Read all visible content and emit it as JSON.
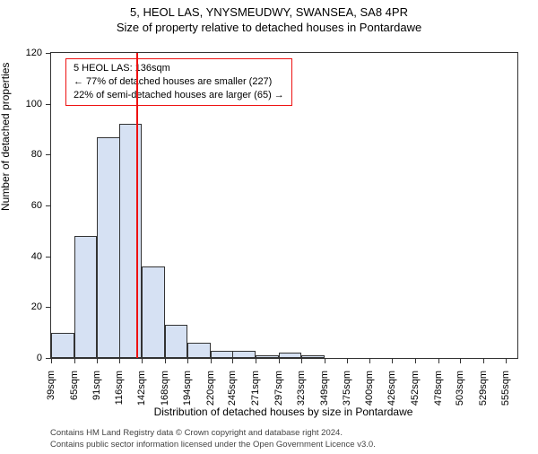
{
  "title": "5, HEOL LAS, YNYSMEUDWY, SWANSEA, SA8 4PR",
  "subtitle": "Size of property relative to detached houses in Pontardawe",
  "xlabel": "Distribution of detached houses by size in Pontardawe",
  "ylabel": "Number of detached properties",
  "footer_line1": "Contains HM Land Registry data © Crown copyright and database right 2024.",
  "footer_line2": "Contains public sector information licensed under the Open Government Licence v3.0.",
  "annotation": {
    "line1": "5 HEOL LAS: 136sqm",
    "line2": "← 77% of detached houses are smaller (227)",
    "line3": "22% of semi-detached houses are larger (65) →"
  },
  "chart": {
    "type": "histogram",
    "background_color": "#ffffff",
    "bar_fill": "#d6e1f3",
    "bar_border": "#333333",
    "vline_color": "#ee1111",
    "annotation_border": "#ee1111",
    "y_min": 0,
    "y_max": 120,
    "ytick_step": 20,
    "yticks": [
      0,
      20,
      40,
      60,
      80,
      100,
      120
    ],
    "x_min": 39,
    "x_max": 568,
    "vline_x": 136,
    "bin_width": 26,
    "x_starts": [
      39,
      65,
      91,
      116,
      142,
      168,
      194,
      220,
      245,
      271,
      297,
      323,
      349,
      375,
      400,
      426,
      452,
      478,
      503,
      529,
      555
    ],
    "xtick_labels": [
      "39sqm",
      "65sqm",
      "91sqm",
      "116sqm",
      "142sqm",
      "168sqm",
      "194sqm",
      "220sqm",
      "245sqm",
      "271sqm",
      "297sqm",
      "323sqm",
      "349sqm",
      "375sqm",
      "400sqm",
      "426sqm",
      "452sqm",
      "478sqm",
      "503sqm",
      "529sqm",
      "555sqm"
    ],
    "values": [
      10,
      48,
      87,
      92,
      36,
      13,
      6,
      3,
      3,
      1,
      2,
      1,
      0,
      0,
      0,
      0,
      0,
      0,
      0,
      0,
      0
    ],
    "title_fontsize": 13,
    "label_fontsize": 12,
    "tick_fontsize": 11
  }
}
